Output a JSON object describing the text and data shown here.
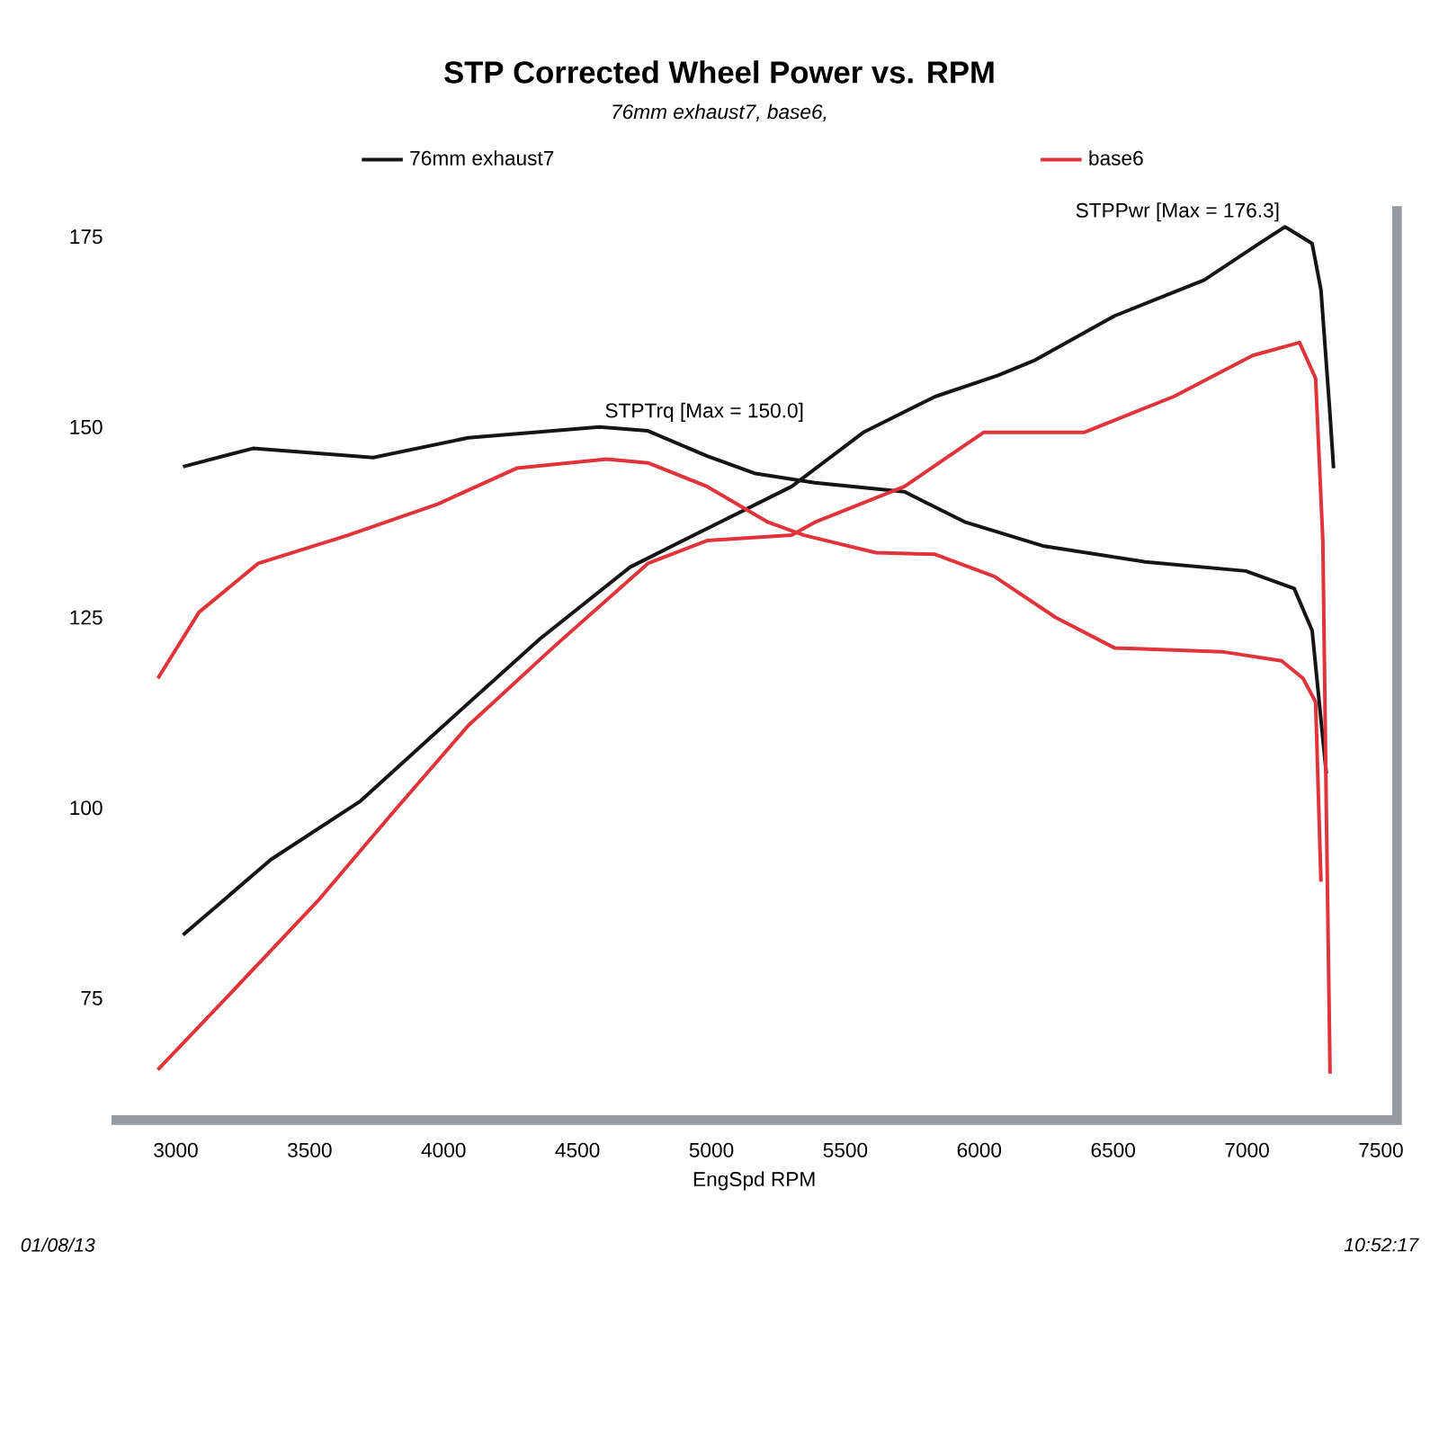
{
  "chart_data": {
    "type": "line",
    "title": "STP Corrected Wheel Power vs. RPM",
    "subtitle": "76mm exhaust7, base6,",
    "xlabel": "EngSpd  RPM",
    "xlim": [
      2760,
      7560
    ],
    "ylim": [
      59,
      179
    ],
    "xticks": [
      3000,
      3500,
      4000,
      4500,
      5000,
      5500,
      6000,
      6500,
      7000,
      7500
    ],
    "yticks": [
      75,
      100,
      125,
      150,
      175
    ],
    "grid": false,
    "legend": "top",
    "marker": "none",
    "line_style": "solid",
    "series": [
      {
        "name": "76mm exhaust7",
        "color": "#151515",
        "x": [
          3027,
          3355,
          3690,
          4025,
          4360,
          4696,
          5031,
          5300,
          5567,
          5835,
          6070,
          6203,
          6505,
          6840,
          7041,
          7142,
          7243,
          7276,
          7310,
          7323
        ],
        "values": [
          83.3,
          93.2,
          100.9,
          111.6,
          122.2,
          131.6,
          137.5,
          142.2,
          149.3,
          154.0,
          156.8,
          158.7,
          164.6,
          169.3,
          174.0,
          176.3,
          174.1,
          168.0,
          151.6,
          144.6
        ]
      },
      {
        "color": "#151515",
        "x": [
          3027,
          3288,
          3737,
          4092,
          4582,
          4763,
          4984,
          5165,
          5386,
          5721,
          5949,
          6237,
          6619,
          6995,
          7176,
          7243,
          7296
        ],
        "values": [
          144.8,
          147.2,
          146.0,
          148.6,
          150.0,
          149.5,
          146.2,
          143.9,
          142.7,
          141.5,
          137.5,
          134.4,
          132.3,
          131.1,
          128.8,
          123.3,
          104.5
        ]
      },
      {
        "name": "base6",
        "color": "#e0343a",
        "x": [
          2933,
          3201,
          3536,
          3804,
          4092,
          4407,
          4763,
          4984,
          5299,
          5386,
          5721,
          6016,
          6391,
          6726,
          7021,
          7196,
          7256,
          7283,
          7296,
          7310
        ],
        "values": [
          65.6,
          75.5,
          88.0,
          99.1,
          110.8,
          121.0,
          132.1,
          135.1,
          135.8,
          137.5,
          142.2,
          149.3,
          149.3,
          154.0,
          159.4,
          161.1,
          156.4,
          135.1,
          99.8,
          65.1
        ]
      },
      {
        "color": "#e0343a",
        "x": [
          2933,
          3087,
          3308,
          3643,
          3979,
          4273,
          4609,
          4763,
          4984,
          5212,
          5346,
          5614,
          5835,
          6056,
          6285,
          6505,
          6907,
          7129,
          7209,
          7256,
          7276
        ],
        "values": [
          117.0,
          125.7,
          132.1,
          135.8,
          139.9,
          144.6,
          145.8,
          145.3,
          142.2,
          137.5,
          135.8,
          133.5,
          133.3,
          130.4,
          125.0,
          121.0,
          120.5,
          119.3,
          117.0,
          113.9,
          90.3
        ]
      }
    ],
    "annotations": [
      {
        "text": "STPPwr [Max = 176.3]",
        "x": 7142,
        "y": 176.3
      },
      {
        "text": "STPTrq [Max = 150.0]",
        "x": 4582,
        "y": 150.0
      },
      "01/08/13",
      "10:52:17"
    ]
  }
}
